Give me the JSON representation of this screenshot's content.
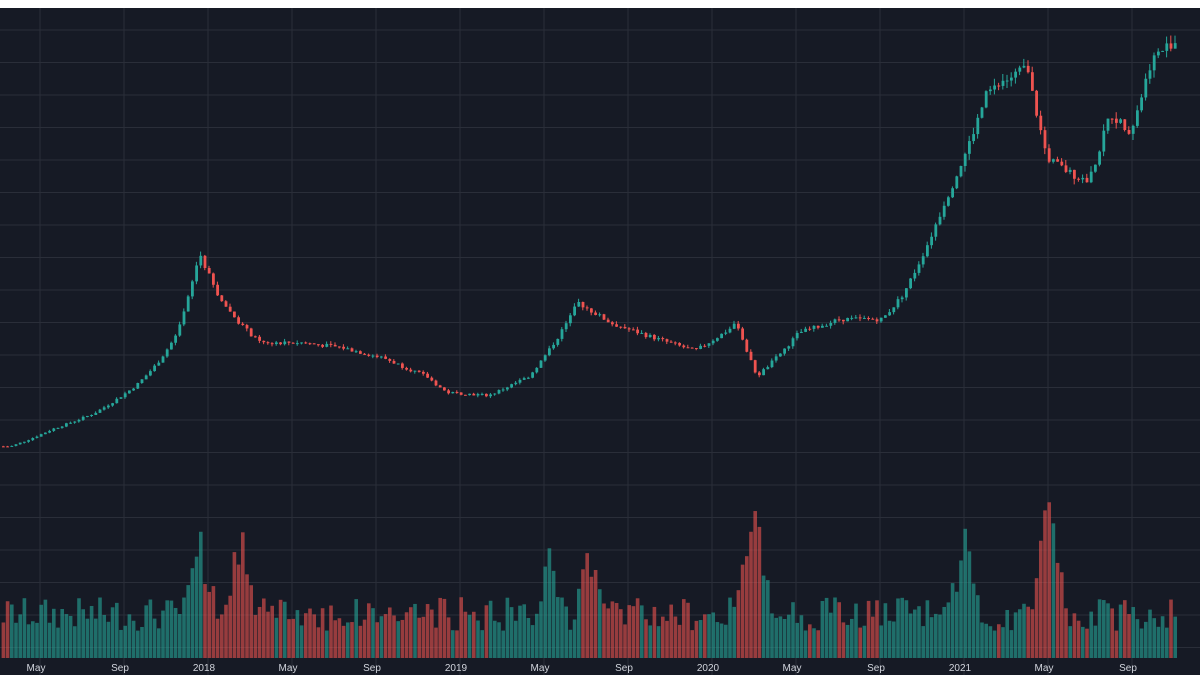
{
  "chart_data": {
    "type": "candlestick",
    "colors": {
      "background": "#161a25",
      "grid": "#2a2e39",
      "up": "#26a69a",
      "down": "#ef5350",
      "label": "#d1d4dc"
    },
    "x_ticks": [
      "May",
      "Sep",
      "2018",
      "May",
      "Sep",
      "2019",
      "May",
      "Sep",
      "2020",
      "May",
      "Sep",
      "2021",
      "May",
      "Sep"
    ],
    "grid": true,
    "x_range": [
      "2017-03",
      "2021-11"
    ],
    "price_series": [
      [
        "2017-03",
        1000
      ],
      [
        "2017-05",
        1700
      ],
      [
        "2017-07",
        2500
      ],
      [
        "2017-09",
        4300
      ],
      [
        "2017-10",
        6000
      ],
      [
        "2017-11",
        9000
      ],
      [
        "2017-12-17",
        19500
      ],
      [
        "2018-01",
        13000
      ],
      [
        "2018-02",
        10000
      ],
      [
        "2018-03",
        8000
      ],
      [
        "2018-05",
        8000
      ],
      [
        "2018-07",
        7500
      ],
      [
        "2018-09",
        6500
      ],
      [
        "2018-11",
        5000
      ],
      [
        "2018-12",
        3800
      ],
      [
        "2019-02",
        3600
      ],
      [
        "2019-04",
        5000
      ],
      [
        "2019-06-26",
        12500
      ],
      [
        "2019-08",
        10000
      ],
      [
        "2019-10",
        8500
      ],
      [
        "2019-12",
        7200
      ],
      [
        "2020-02",
        10000
      ],
      [
        "2020-03-15",
        5000
      ],
      [
        "2020-05",
        9000
      ],
      [
        "2020-07",
        10500
      ],
      [
        "2020-09",
        10500
      ],
      [
        "2020-10",
        13500
      ],
      [
        "2020-12",
        28000
      ],
      [
        "2021-01",
        38000
      ],
      [
        "2021-02",
        52000
      ],
      [
        "2021-04",
        59000
      ],
      [
        "2021-05",
        37000
      ],
      [
        "2021-06",
        34000
      ],
      [
        "2021-07",
        32000
      ],
      [
        "2021-08",
        47000
      ],
      [
        "2021-09",
        43000
      ],
      [
        "2021-10",
        61000
      ],
      [
        "2021-11",
        66000
      ]
    ],
    "volume_spikes": [
      [
        "2017-12-17",
        1.0
      ],
      [
        "2018-02",
        0.95
      ],
      [
        "2019-05",
        0.85
      ],
      [
        "2019-07",
        0.9
      ],
      [
        "2020-03-12",
        1.2
      ],
      [
        "2021-01",
        0.95
      ],
      [
        "2021-05-19",
        1.2
      ]
    ]
  }
}
